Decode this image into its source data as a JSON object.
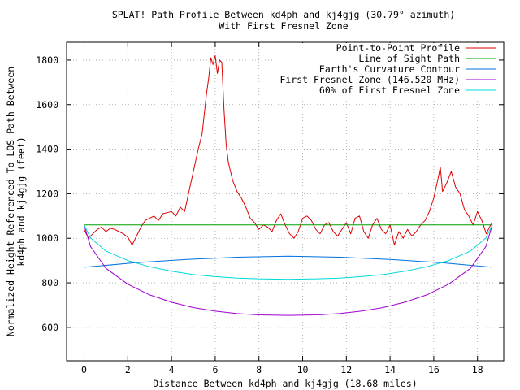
{
  "chart_data": {
    "type": "line",
    "title_line1": "SPLAT! Path Profile Between kd4ph and kj4gjg (30.79° azimuth)",
    "title_line2": "With First Fresnel Zone",
    "xlabel": "Distance Between kd4ph and kj4gjg (18.68 miles)",
    "ylabel_line1": "Normalized Height Referenced To LOS Path Between",
    "ylabel_line2": "kd4ph and kj4gjg (feet)",
    "xlim": [
      -0.8,
      19.2
    ],
    "ylim": [
      450,
      1880
    ],
    "x_ticks": [
      0,
      2,
      4,
      6,
      8,
      10,
      12,
      14,
      16,
      18
    ],
    "y_ticks": [
      600,
      800,
      1000,
      1200,
      1400,
      1600,
      1800
    ],
    "grid": true,
    "legend_position": "top-right",
    "path_length_miles": 18.68,
    "colors": {
      "profile": "#dd0000",
      "los": "#00a000",
      "curvature": "#0070e0",
      "fresnel": "#a000d0",
      "fresnel60": "#00d8d8"
    },
    "series": [
      {
        "key": "profile",
        "name": "Point-to-Point Profile",
        "x": [
          0,
          0.2,
          0.4,
          0.6,
          0.8,
          1.0,
          1.2,
          1.4,
          1.6,
          1.8,
          2.0,
          2.2,
          2.4,
          2.6,
          2.8,
          3.0,
          3.2,
          3.4,
          3.6,
          3.8,
          4.0,
          4.2,
          4.4,
          4.6,
          4.8,
          5.0,
          5.2,
          5.4,
          5.5,
          5.6,
          5.7,
          5.8,
          5.9,
          6.0,
          6.1,
          6.2,
          6.3,
          6.4,
          6.5,
          6.6,
          6.8,
          7.0,
          7.2,
          7.4,
          7.6,
          7.8,
          8.0,
          8.2,
          8.4,
          8.6,
          8.8,
          9.0,
          9.2,
          9.4,
          9.6,
          9.8,
          10.0,
          10.2,
          10.4,
          10.6,
          10.8,
          11.0,
          11.2,
          11.4,
          11.6,
          11.8,
          12.0,
          12.2,
          12.4,
          12.6,
          12.8,
          13.0,
          13.2,
          13.4,
          13.6,
          13.8,
          14.0,
          14.2,
          14.4,
          14.6,
          14.8,
          15.0,
          15.2,
          15.4,
          15.6,
          15.8,
          16.0,
          16.2,
          16.3,
          16.4,
          16.6,
          16.8,
          17.0,
          17.2,
          17.4,
          17.6,
          17.8,
          18.0,
          18.2,
          18.4,
          18.6,
          18.68
        ],
        "y": [
          1040,
          1000,
          1020,
          1040,
          1050,
          1030,
          1045,
          1040,
          1030,
          1020,
          1005,
          970,
          1010,
          1050,
          1080,
          1090,
          1100,
          1080,
          1110,
          1115,
          1120,
          1100,
          1140,
          1120,
          1210,
          1300,
          1390,
          1470,
          1560,
          1650,
          1720,
          1810,
          1780,
          1820,
          1740,
          1800,
          1790,
          1580,
          1420,
          1340,
          1260,
          1210,
          1180,
          1140,
          1090,
          1070,
          1040,
          1060,
          1050,
          1030,
          1080,
          1110,
          1060,
          1020,
          1000,
          1030,
          1090,
          1100,
          1080,
          1040,
          1020,
          1060,
          1070,
          1030,
          1010,
          1040,
          1070,
          1020,
          1090,
          1100,
          1030,
          1000,
          1060,
          1090,
          1040,
          1020,
          1060,
          970,
          1030,
          1000,
          1040,
          1010,
          1030,
          1060,
          1080,
          1120,
          1180,
          1270,
          1320,
          1210,
          1250,
          1300,
          1230,
          1200,
          1130,
          1100,
          1060,
          1120,
          1080,
          1020,
          1060,
          1070
        ]
      },
      {
        "key": "los",
        "name": "Line of Sight Path",
        "x": [
          0,
          18.68
        ],
        "y": [
          1060,
          1060
        ]
      },
      {
        "key": "curvature",
        "name": "Earth's Curvature Contour",
        "x": [
          0,
          2.3,
          4.7,
          7.0,
          9.34,
          11.7,
          14.0,
          16.4,
          18.68
        ],
        "y": [
          870,
          890,
          905,
          915,
          920,
          915,
          905,
          890,
          870
        ]
      },
      {
        "key": "fresnel",
        "name": "First Fresnel Zone (146.520 MHz)",
        "x": [
          0,
          0.3,
          1.0,
          2.0,
          3.0,
          4.0,
          5.0,
          6.0,
          7.0,
          8.0,
          9.34,
          10.68,
          11.68,
          12.68,
          13.68,
          14.68,
          15.68,
          16.68,
          17.68,
          18.38,
          18.68
        ],
        "y": [
          1060,
          962,
          865,
          794,
          746,
          713,
          689,
          673,
          662,
          656,
          654,
          656,
          662,
          673,
          689,
          713,
          746,
          794,
          865,
          962,
          1060
        ]
      },
      {
        "key": "fresnel60",
        "name": "60% of First Fresnel Zone",
        "x": [
          0,
          0.3,
          1.0,
          2.0,
          3.0,
          4.0,
          5.0,
          6.0,
          7.0,
          8.0,
          9.34,
          10.68,
          11.68,
          12.68,
          13.68,
          14.68,
          15.68,
          16.68,
          17.68,
          18.38,
          18.68
        ],
        "y": [
          1060,
          1001,
          943,
          900,
          872,
          852,
          837,
          828,
          821,
          818,
          816,
          818,
          821,
          828,
          837,
          852,
          872,
          900,
          943,
          1001,
          1060
        ]
      }
    ]
  }
}
